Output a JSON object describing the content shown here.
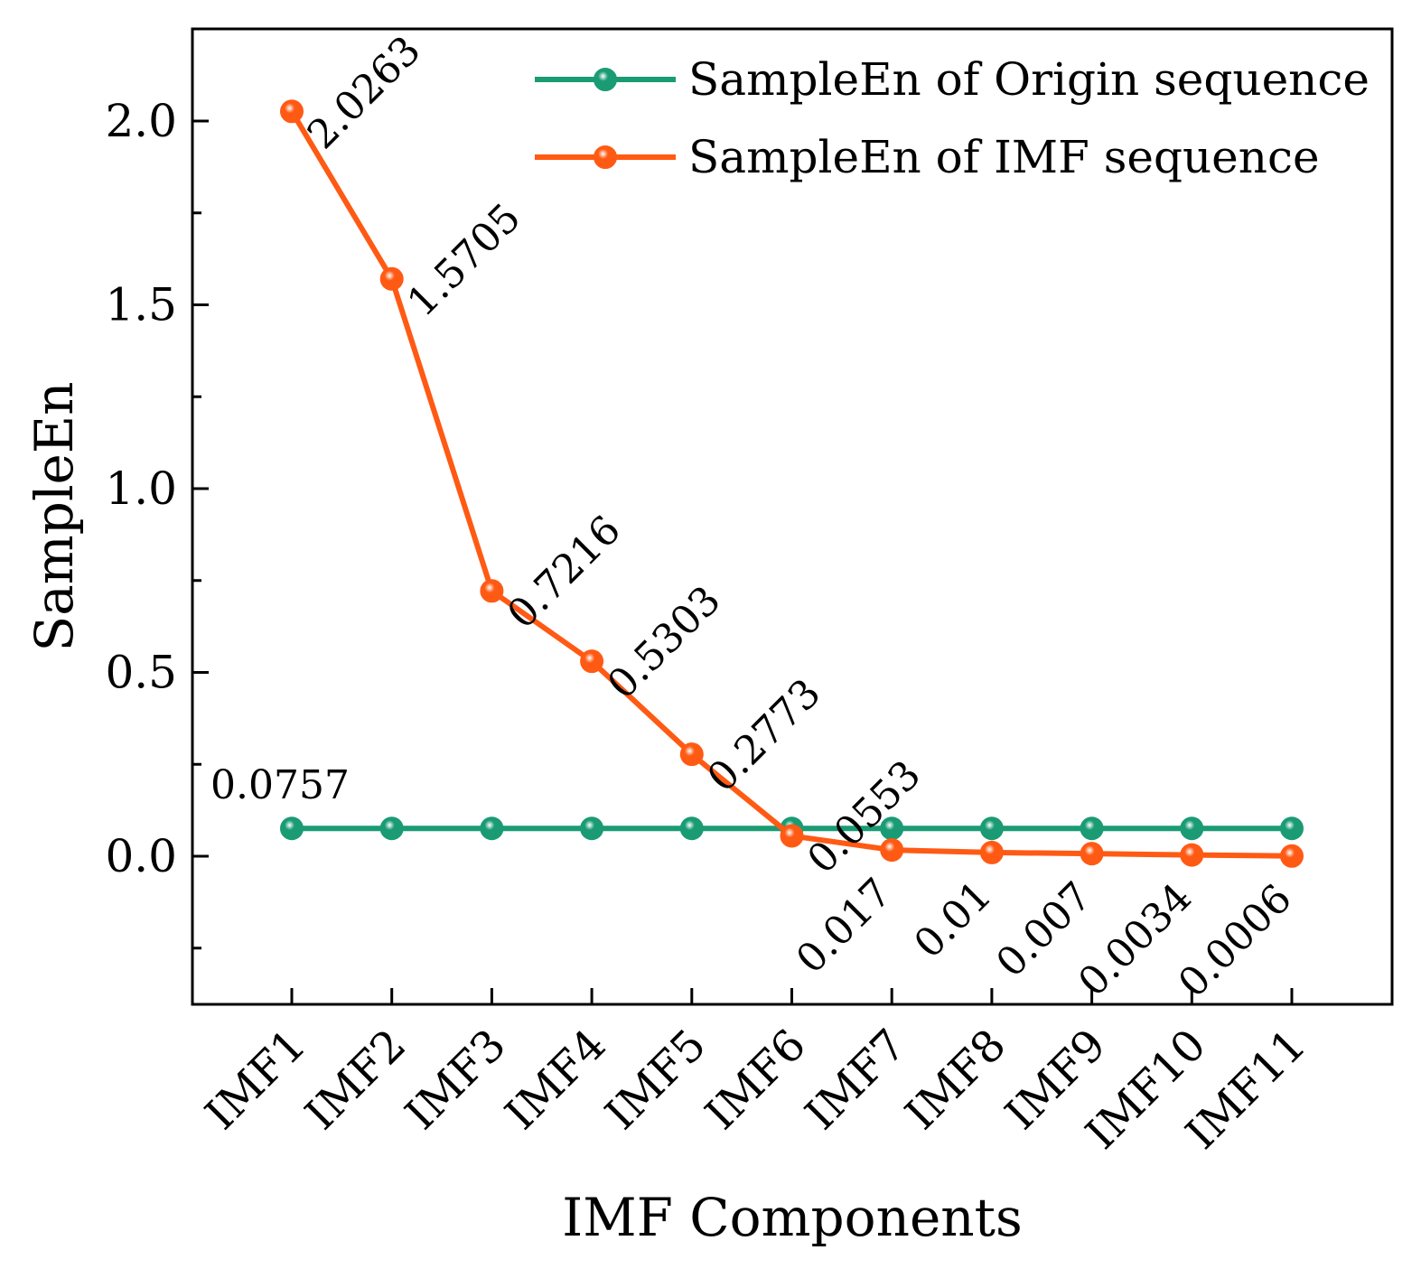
{
  "chart_data": {
    "type": "line",
    "xlabel": "IMF Components",
    "ylabel": "SampleEn",
    "categories": [
      "IMF1",
      "IMF2",
      "IMF3",
      "IMF4",
      "IMF5",
      "IMF6",
      "IMF7",
      "IMF8",
      "IMF9",
      "IMF10",
      "IMF11"
    ],
    "ylim": [
      -0.4,
      2.25
    ],
    "yticks": [
      0.0,
      0.5,
      1.0,
      1.5,
      2.0
    ],
    "ytick_labels": [
      "0.0",
      "0.5",
      "1.0",
      "1.5",
      "2.0"
    ],
    "grid": false,
    "legend_position": "top-right",
    "series": [
      {
        "name": "SampleEn of Origin sequence",
        "color": "#1a9b74",
        "values": [
          0.0757,
          0.0757,
          0.0757,
          0.0757,
          0.0757,
          0.0757,
          0.0757,
          0.0757,
          0.0757,
          0.0757,
          0.0757
        ],
        "labels": [
          "0.0757",
          "",
          "",
          "",
          "",
          "",
          "",
          "",
          "",
          "",
          ""
        ]
      },
      {
        "name": "SampleEn of IMF sequence",
        "color": "#ff5a14",
        "values": [
          2.0263,
          1.5705,
          0.7216,
          0.5303,
          0.2773,
          0.0553,
          0.017,
          0.01,
          0.007,
          0.0034,
          0.0006
        ],
        "labels": [
          "2.0263",
          "1.5705",
          "0.7216",
          "0.5303",
          "0.2773",
          "0.0553",
          "0.017",
          "0.01",
          "0.007",
          "0.0034",
          "0.0006"
        ]
      }
    ]
  }
}
